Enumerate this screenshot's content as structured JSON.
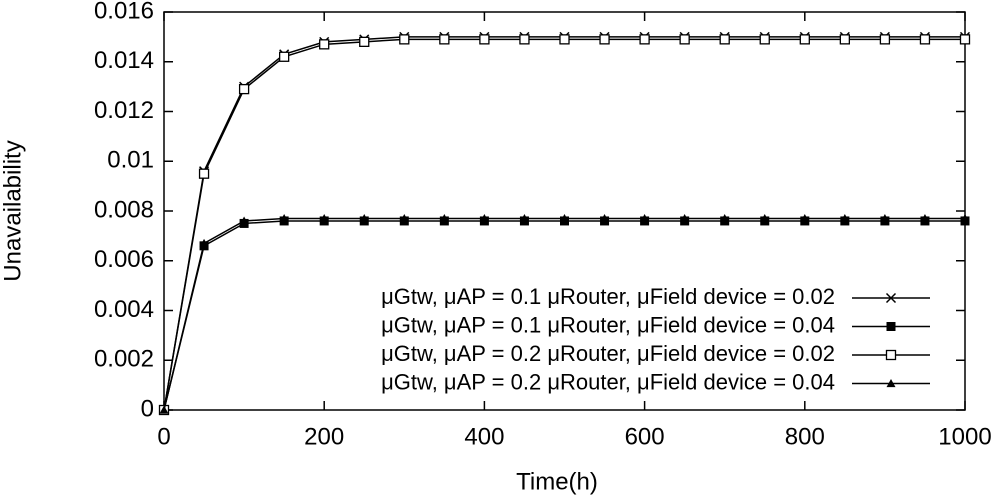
{
  "chart_data": {
    "type": "line",
    "xlabel": "Time(h)",
    "ylabel": "Unavailability",
    "x": [
      0,
      50,
      100,
      150,
      200,
      250,
      300,
      350,
      400,
      450,
      500,
      550,
      600,
      650,
      700,
      750,
      800,
      850,
      900,
      950,
      1000
    ],
    "series": [
      {
        "name": "μGtw, μAP = 0.1 μRouter, μField device = 0.02",
        "color": "#000000",
        "marker": "x",
        "values": [
          0,
          0.0096,
          0.013,
          0.0143,
          0.0148,
          0.0149,
          0.015,
          0.015,
          0.015,
          0.015,
          0.015,
          0.015,
          0.015,
          0.015,
          0.015,
          0.015,
          0.015,
          0.015,
          0.015,
          0.015,
          0.015
        ]
      },
      {
        "name": "μGtw, μAP = 0.1 μRouter, μField device = 0.04",
        "color": "#000000",
        "marker": "filled-square",
        "values": [
          0,
          0.0066,
          0.0075,
          0.0076,
          0.0076,
          0.0076,
          0.0076,
          0.0076,
          0.0076,
          0.0076,
          0.0076,
          0.0076,
          0.0076,
          0.0076,
          0.0076,
          0.0076,
          0.0076,
          0.0076,
          0.0076,
          0.0076,
          0.0076
        ]
      },
      {
        "name": "μGtw, μAP = 0.2 μRouter, μField device = 0.02",
        "color": "#000000",
        "marker": "open-square",
        "values": [
          0,
          0.0095,
          0.0129,
          0.0142,
          0.0147,
          0.0148,
          0.0149,
          0.0149,
          0.0149,
          0.0149,
          0.0149,
          0.0149,
          0.0149,
          0.0149,
          0.0149,
          0.0149,
          0.0149,
          0.0149,
          0.0149,
          0.0149,
          0.0149
        ]
      },
      {
        "name": "μGtw, μAP = 0.2 μRouter, μField device = 0.04",
        "color": "#000000",
        "marker": "triangle",
        "values": [
          0,
          0.0067,
          0.0076,
          0.0077,
          0.0077,
          0.0077,
          0.0077,
          0.0077,
          0.0077,
          0.0077,
          0.0077,
          0.0077,
          0.0077,
          0.0077,
          0.0077,
          0.0077,
          0.0077,
          0.0077,
          0.0077,
          0.0077,
          0.0077
        ]
      }
    ],
    "xlim": [
      0,
      1000
    ],
    "xticks": [
      0,
      200,
      400,
      600,
      800,
      1000
    ],
    "ylim": [
      0,
      0.016
    ],
    "yticks": [
      0,
      0.002,
      0.004,
      0.006,
      0.008,
      0.01,
      0.012,
      0.014,
      0.016
    ],
    "legend": "lower right"
  }
}
